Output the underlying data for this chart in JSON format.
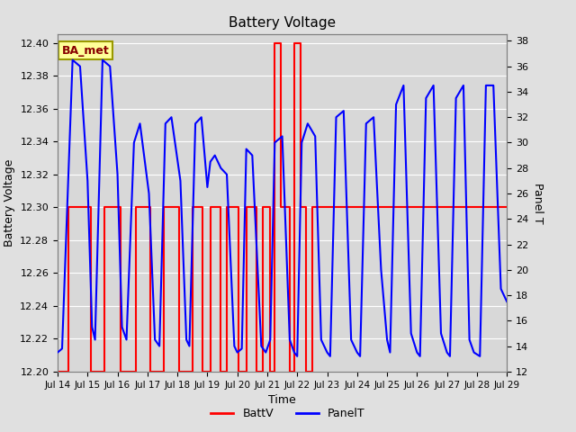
{
  "title": "Battery Voltage",
  "xlabel": "Time",
  "ylabel_left": "Battery Voltage",
  "ylabel_right": "Panel T",
  "fig_bg_color": "#e0e0e0",
  "plot_bg_color": "#d8d8d8",
  "legend_label_batt": "BattV",
  "legend_label_panel": "PanelT",
  "annotation_text": "BA_met",
  "annotation_bg": "#ffff99",
  "annotation_border": "#999900",
  "batt_color": "#ff0000",
  "panel_color": "#0000ff",
  "ylim_left": [
    12.2,
    12.405
  ],
  "ylim_right": [
    12,
    38.5
  ],
  "xlim": [
    0,
    15
  ],
  "xtick_positions": [
    0,
    1,
    2,
    3,
    4,
    5,
    6,
    7,
    8,
    9,
    10,
    11,
    12,
    13,
    14,
    15
  ],
  "xtick_labels": [
    "Jul 14",
    "Jul 15",
    "Jul 16",
    "Jul 17",
    "Jul 18",
    "Jul 19",
    "Jul 20",
    "Jul 21",
    "Jul 22",
    "Jul 23",
    "Jul 24",
    "Jul 25",
    "Jul 26",
    "Jul 27",
    "Jul 28",
    "Jul 29"
  ],
  "ytick_left": [
    12.2,
    12.22,
    12.24,
    12.26,
    12.28,
    12.3,
    12.32,
    12.34,
    12.36,
    12.38,
    12.4
  ],
  "ytick_right": [
    12,
    14,
    16,
    18,
    20,
    22,
    24,
    26,
    28,
    30,
    32,
    34,
    36,
    38
  ],
  "batt_data": [
    [
      0.0,
      12.2
    ],
    [
      0.35,
      12.2
    ],
    [
      0.35,
      12.3
    ],
    [
      1.1,
      12.3
    ],
    [
      1.1,
      12.2
    ],
    [
      1.55,
      12.2
    ],
    [
      1.55,
      12.3
    ],
    [
      2.1,
      12.3
    ],
    [
      2.1,
      12.2
    ],
    [
      2.6,
      12.2
    ],
    [
      2.6,
      12.3
    ],
    [
      3.1,
      12.3
    ],
    [
      3.1,
      12.2
    ],
    [
      3.55,
      12.2
    ],
    [
      3.55,
      12.3
    ],
    [
      4.05,
      12.3
    ],
    [
      4.05,
      12.2
    ],
    [
      4.5,
      12.2
    ],
    [
      4.5,
      12.3
    ],
    [
      4.85,
      12.3
    ],
    [
      4.85,
      12.2
    ],
    [
      5.1,
      12.2
    ],
    [
      5.1,
      12.3
    ],
    [
      5.45,
      12.3
    ],
    [
      5.45,
      12.2
    ],
    [
      5.65,
      12.2
    ],
    [
      5.65,
      12.3
    ],
    [
      6.05,
      12.3
    ],
    [
      6.05,
      12.2
    ],
    [
      6.3,
      12.2
    ],
    [
      6.3,
      12.3
    ],
    [
      6.65,
      12.3
    ],
    [
      6.65,
      12.2
    ],
    [
      6.85,
      12.2
    ],
    [
      6.85,
      12.3
    ],
    [
      7.1,
      12.3
    ],
    [
      7.1,
      12.2
    ],
    [
      7.25,
      12.2
    ],
    [
      7.25,
      12.4
    ],
    [
      7.45,
      12.4
    ],
    [
      7.45,
      12.3
    ],
    [
      7.75,
      12.3
    ],
    [
      7.75,
      12.2
    ],
    [
      7.9,
      12.2
    ],
    [
      7.9,
      12.4
    ],
    [
      8.1,
      12.4
    ],
    [
      8.1,
      12.3
    ],
    [
      8.3,
      12.3
    ],
    [
      8.3,
      12.2
    ],
    [
      8.5,
      12.2
    ],
    [
      8.5,
      12.3
    ],
    [
      15.0,
      12.3
    ]
  ],
  "panel_data": [
    [
      0.0,
      13.5
    ],
    [
      0.15,
      13.8
    ],
    [
      0.5,
      36.5
    ],
    [
      0.75,
      36.0
    ],
    [
      1.0,
      27.0
    ],
    [
      1.15,
      15.5
    ],
    [
      1.25,
      14.5
    ],
    [
      1.5,
      36.5
    ],
    [
      1.75,
      36.0
    ],
    [
      2.0,
      27.5
    ],
    [
      2.15,
      15.5
    ],
    [
      2.3,
      14.5
    ],
    [
      2.55,
      30.0
    ],
    [
      2.75,
      31.5
    ],
    [
      3.05,
      26.0
    ],
    [
      3.25,
      14.5
    ],
    [
      3.4,
      14.0
    ],
    [
      3.6,
      31.5
    ],
    [
      3.8,
      32.0
    ],
    [
      4.1,
      27.0
    ],
    [
      4.3,
      14.5
    ],
    [
      4.4,
      14.0
    ],
    [
      4.6,
      31.5
    ],
    [
      4.8,
      32.0
    ],
    [
      5.0,
      26.5
    ],
    [
      5.1,
      28.5
    ],
    [
      5.25,
      29.0
    ],
    [
      5.45,
      28.0
    ],
    [
      5.65,
      27.5
    ],
    [
      5.9,
      14.0
    ],
    [
      6.0,
      13.5
    ],
    [
      6.15,
      13.8
    ],
    [
      6.3,
      29.5
    ],
    [
      6.5,
      29.0
    ],
    [
      6.8,
      14.0
    ],
    [
      6.95,
      13.5
    ],
    [
      7.1,
      14.5
    ],
    [
      7.25,
      30.0
    ],
    [
      7.5,
      30.5
    ],
    [
      7.75,
      14.5
    ],
    [
      7.9,
      13.5
    ],
    [
      8.0,
      13.2
    ],
    [
      8.15,
      30.0
    ],
    [
      8.35,
      31.5
    ],
    [
      8.6,
      30.5
    ],
    [
      8.8,
      14.5
    ],
    [
      9.0,
      13.5
    ],
    [
      9.1,
      13.2
    ],
    [
      9.3,
      32.0
    ],
    [
      9.55,
      32.5
    ],
    [
      9.8,
      14.5
    ],
    [
      10.0,
      13.5
    ],
    [
      10.1,
      13.2
    ],
    [
      10.3,
      31.5
    ],
    [
      10.55,
      32.0
    ],
    [
      10.8,
      20.0
    ],
    [
      11.0,
      14.5
    ],
    [
      11.1,
      13.5
    ],
    [
      11.3,
      33.0
    ],
    [
      11.55,
      34.5
    ],
    [
      11.8,
      15.0
    ],
    [
      12.0,
      13.5
    ],
    [
      12.1,
      13.2
    ],
    [
      12.3,
      33.5
    ],
    [
      12.55,
      34.5
    ],
    [
      12.8,
      15.0
    ],
    [
      13.0,
      13.5
    ],
    [
      13.1,
      13.2
    ],
    [
      13.3,
      33.5
    ],
    [
      13.55,
      34.5
    ],
    [
      13.75,
      14.5
    ],
    [
      13.9,
      13.5
    ],
    [
      14.1,
      13.2
    ],
    [
      14.3,
      34.5
    ],
    [
      14.55,
      34.5
    ],
    [
      14.8,
      18.5
    ],
    [
      15.0,
      17.5
    ]
  ]
}
